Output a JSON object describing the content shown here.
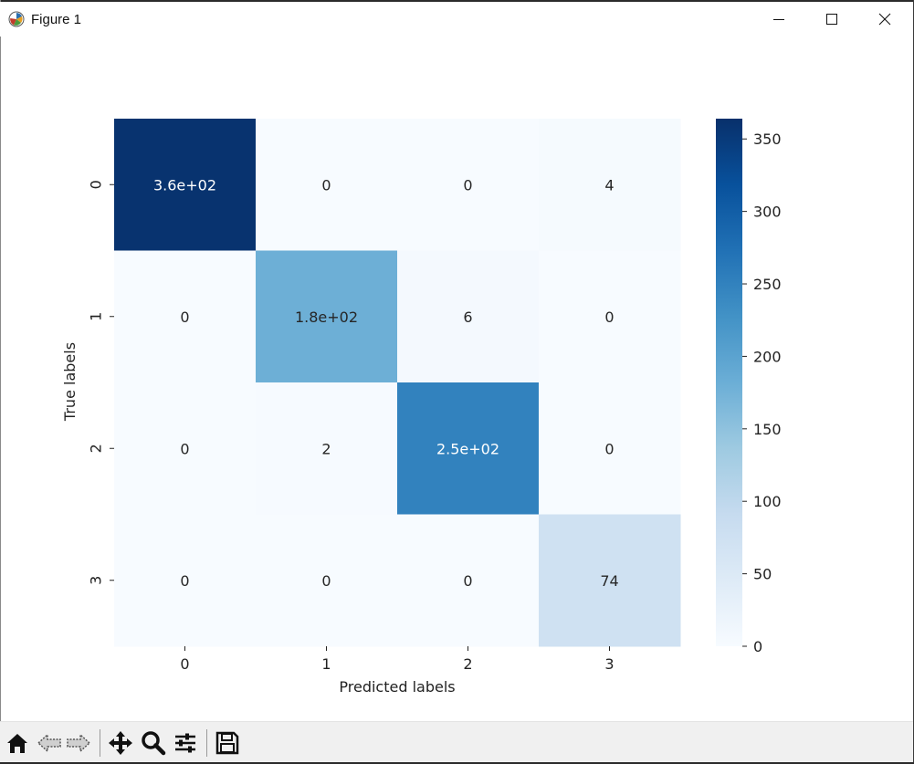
{
  "window": {
    "title": "Figure 1"
  },
  "chart_data": {
    "type": "heatmap",
    "title": "",
    "xlabel": "Predicted labels",
    "ylabel": "True labels",
    "x_categories": [
      "0",
      "1",
      "2",
      "3"
    ],
    "y_categories": [
      "0",
      "1",
      "2",
      "3"
    ],
    "values": [
      [
        360,
        0,
        0,
        4
      ],
      [
        0,
        180,
        6,
        0
      ],
      [
        0,
        2,
        250,
        0
      ],
      [
        0,
        0,
        0,
        74
      ]
    ],
    "annotations": [
      [
        "3.6e+02",
        "0",
        "0",
        "4"
      ],
      [
        "0",
        "1.8e+02",
        "6",
        "0"
      ],
      [
        "0",
        "2",
        "2.5e+02",
        "0"
      ],
      [
        "0",
        "0",
        "0",
        "74"
      ]
    ],
    "colormap": "Blues",
    "colorbar": {
      "range": [
        0,
        364
      ],
      "ticks": [
        0,
        50,
        100,
        150,
        200,
        250,
        300,
        350
      ]
    }
  },
  "toolbar": {
    "tools": [
      {
        "name": "home-icon"
      },
      {
        "name": "back-icon"
      },
      {
        "name": "forward-icon"
      },
      {
        "name": "pan-icon"
      },
      {
        "name": "zoom-icon"
      },
      {
        "name": "configure-subplots-icon"
      },
      {
        "name": "save-icon"
      }
    ]
  }
}
